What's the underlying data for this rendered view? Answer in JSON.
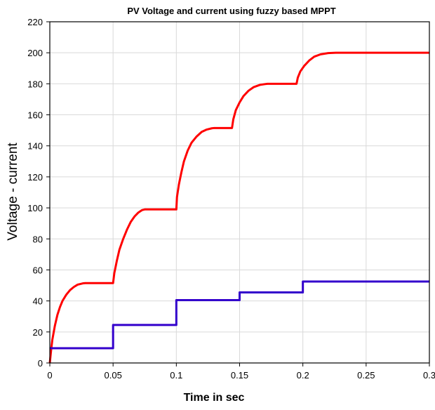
{
  "chart_data": {
    "type": "line",
    "title": "PV Voltage and current using fuzzy based MPPT",
    "xlabel": "Time in sec",
    "ylabel": "Voltage - current",
    "xlim": [
      0,
      0.3
    ],
    "ylim": [
      0,
      220
    ],
    "x_ticks": [
      0,
      0.05,
      0.1,
      0.15,
      0.2,
      0.25,
      0.3
    ],
    "x_tick_labels": [
      "0",
      "0.05",
      "0.1",
      "0.15",
      "0.2",
      "0.25",
      "0.3"
    ],
    "y_ticks": [
      0,
      20,
      40,
      60,
      80,
      100,
      120,
      140,
      160,
      180,
      200,
      220
    ],
    "y_tick_labels": [
      "0",
      "20",
      "40",
      "60",
      "80",
      "100",
      "120",
      "140",
      "160",
      "180",
      "200",
      "220"
    ],
    "grid": true,
    "legend": "none",
    "series": [
      {
        "color": "#ff0000",
        "points": [
          [
            0,
            0
          ],
          [
            0.001,
            8
          ],
          [
            0.002,
            15
          ],
          [
            0.004,
            24
          ],
          [
            0.006,
            31
          ],
          [
            0.008,
            36
          ],
          [
            0.01,
            40
          ],
          [
            0.013,
            44
          ],
          [
            0.016,
            47
          ],
          [
            0.019,
            49
          ],
          [
            0.022,
            50.5
          ],
          [
            0.026,
            51.3
          ],
          [
            0.028,
            51.5
          ],
          [
            0.05,
            51.5
          ],
          [
            0.051,
            58
          ],
          [
            0.053,
            66
          ],
          [
            0.055,
            73
          ],
          [
            0.058,
            80
          ],
          [
            0.061,
            86
          ],
          [
            0.064,
            91
          ],
          [
            0.067,
            94.5
          ],
          [
            0.07,
            97
          ],
          [
            0.073,
            98.6
          ],
          [
            0.075,
            99
          ],
          [
            0.1,
            99
          ],
          [
            0.1005,
            107
          ],
          [
            0.102,
            115
          ],
          [
            0.104,
            123
          ],
          [
            0.106,
            130
          ],
          [
            0.109,
            137
          ],
          [
            0.112,
            142
          ],
          [
            0.116,
            146
          ],
          [
            0.12,
            149
          ],
          [
            0.124,
            150.5
          ],
          [
            0.128,
            151.3
          ],
          [
            0.13,
            151.5
          ],
          [
            0.144,
            151.5
          ],
          [
            0.145,
            157
          ],
          [
            0.147,
            163
          ],
          [
            0.15,
            168
          ],
          [
            0.153,
            172
          ],
          [
            0.157,
            175.5
          ],
          [
            0.161,
            177.8
          ],
          [
            0.166,
            179.3
          ],
          [
            0.17,
            179.8
          ],
          [
            0.172,
            180
          ],
          [
            0.195,
            180
          ],
          [
            0.196,
            184
          ],
          [
            0.198,
            188
          ],
          [
            0.201,
            191.5
          ],
          [
            0.205,
            195
          ],
          [
            0.209,
            197.5
          ],
          [
            0.214,
            199
          ],
          [
            0.22,
            199.8
          ],
          [
            0.226,
            200
          ],
          [
            0.3,
            200
          ]
        ]
      },
      {
        "color": "#3300cc",
        "points": [
          [
            0,
            9.5
          ],
          [
            0.05,
            9.5
          ],
          [
            0.05,
            24.5
          ],
          [
            0.1,
            24.5
          ],
          [
            0.1,
            40.5
          ],
          [
            0.15,
            40.5
          ],
          [
            0.15,
            45.5
          ],
          [
            0.2,
            45.5
          ],
          [
            0.2,
            52.5
          ],
          [
            0.3,
            52.5
          ]
        ]
      }
    ]
  }
}
